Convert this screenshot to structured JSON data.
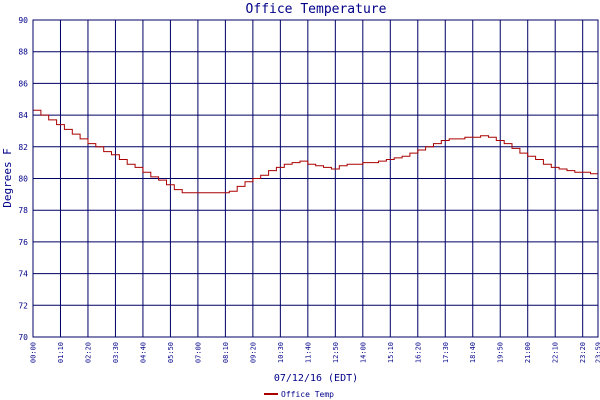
{
  "chart_data": {
    "type": "line",
    "title": "Office Temperature",
    "xlabel": "07/12/16 (EDT)",
    "ylabel": "Degrees F",
    "ylim": [
      70,
      90
    ],
    "xlim": [
      "00:00",
      "23:59"
    ],
    "yticks": [
      70,
      72,
      74,
      76,
      78,
      80,
      82,
      84,
      86,
      88,
      90
    ],
    "xticks": [
      "00:00",
      "01:10",
      "02:20",
      "03:30",
      "04:40",
      "05:50",
      "07:00",
      "08:10",
      "09:20",
      "10:30",
      "11:40",
      "12:50",
      "14:00",
      "15:10",
      "16:20",
      "17:30",
      "18:40",
      "19:50",
      "21:00",
      "22:10",
      "23:20",
      "23:59"
    ],
    "grid": true,
    "legend_position": "bottom-left",
    "series": [
      {
        "name": "Office Temp",
        "color": "#aa0000",
        "x": [
          "00:00",
          "00:20",
          "00:40",
          "01:00",
          "01:20",
          "01:40",
          "02:00",
          "02:20",
          "02:40",
          "03:00",
          "03:20",
          "03:40",
          "04:00",
          "04:20",
          "04:40",
          "05:00",
          "05:20",
          "05:40",
          "06:00",
          "06:20",
          "06:40",
          "07:00",
          "07:20",
          "07:40",
          "08:00",
          "08:20",
          "08:40",
          "09:00",
          "09:20",
          "09:40",
          "10:00",
          "10:20",
          "10:40",
          "11:00",
          "11:20",
          "11:40",
          "12:00",
          "12:20",
          "12:40",
          "13:00",
          "13:20",
          "13:40",
          "14:00",
          "14:20",
          "14:40",
          "15:00",
          "15:20",
          "15:40",
          "16:00",
          "16:20",
          "16:40",
          "17:00",
          "17:20",
          "17:40",
          "18:00",
          "18:20",
          "18:40",
          "19:00",
          "19:20",
          "19:40",
          "20:00",
          "20:20",
          "20:40",
          "21:00",
          "21:20",
          "21:40",
          "22:00",
          "22:20",
          "22:40",
          "23:00",
          "23:20",
          "23:40",
          "23:59"
        ],
        "values": [
          84.3,
          84.0,
          83.7,
          83.4,
          83.1,
          82.8,
          82.5,
          82.2,
          82.0,
          81.7,
          81.5,
          81.2,
          80.9,
          80.7,
          80.4,
          80.1,
          79.9,
          79.6,
          79.3,
          79.1,
          79.1,
          79.1,
          79.1,
          79.1,
          79.1,
          79.2,
          79.5,
          79.8,
          80.0,
          80.2,
          80.5,
          80.7,
          80.9,
          81.0,
          81.1,
          80.9,
          80.8,
          80.7,
          80.6,
          80.8,
          80.9,
          80.9,
          81.0,
          81.0,
          81.1,
          81.2,
          81.3,
          81.4,
          81.6,
          81.8,
          82.0,
          82.2,
          82.4,
          82.5,
          82.5,
          82.6,
          82.6,
          82.7,
          82.6,
          82.4,
          82.2,
          81.9,
          81.6,
          81.4,
          81.2,
          80.9,
          80.7,
          80.6,
          80.5,
          80.4,
          80.4,
          80.3,
          80.3
        ]
      }
    ]
  }
}
